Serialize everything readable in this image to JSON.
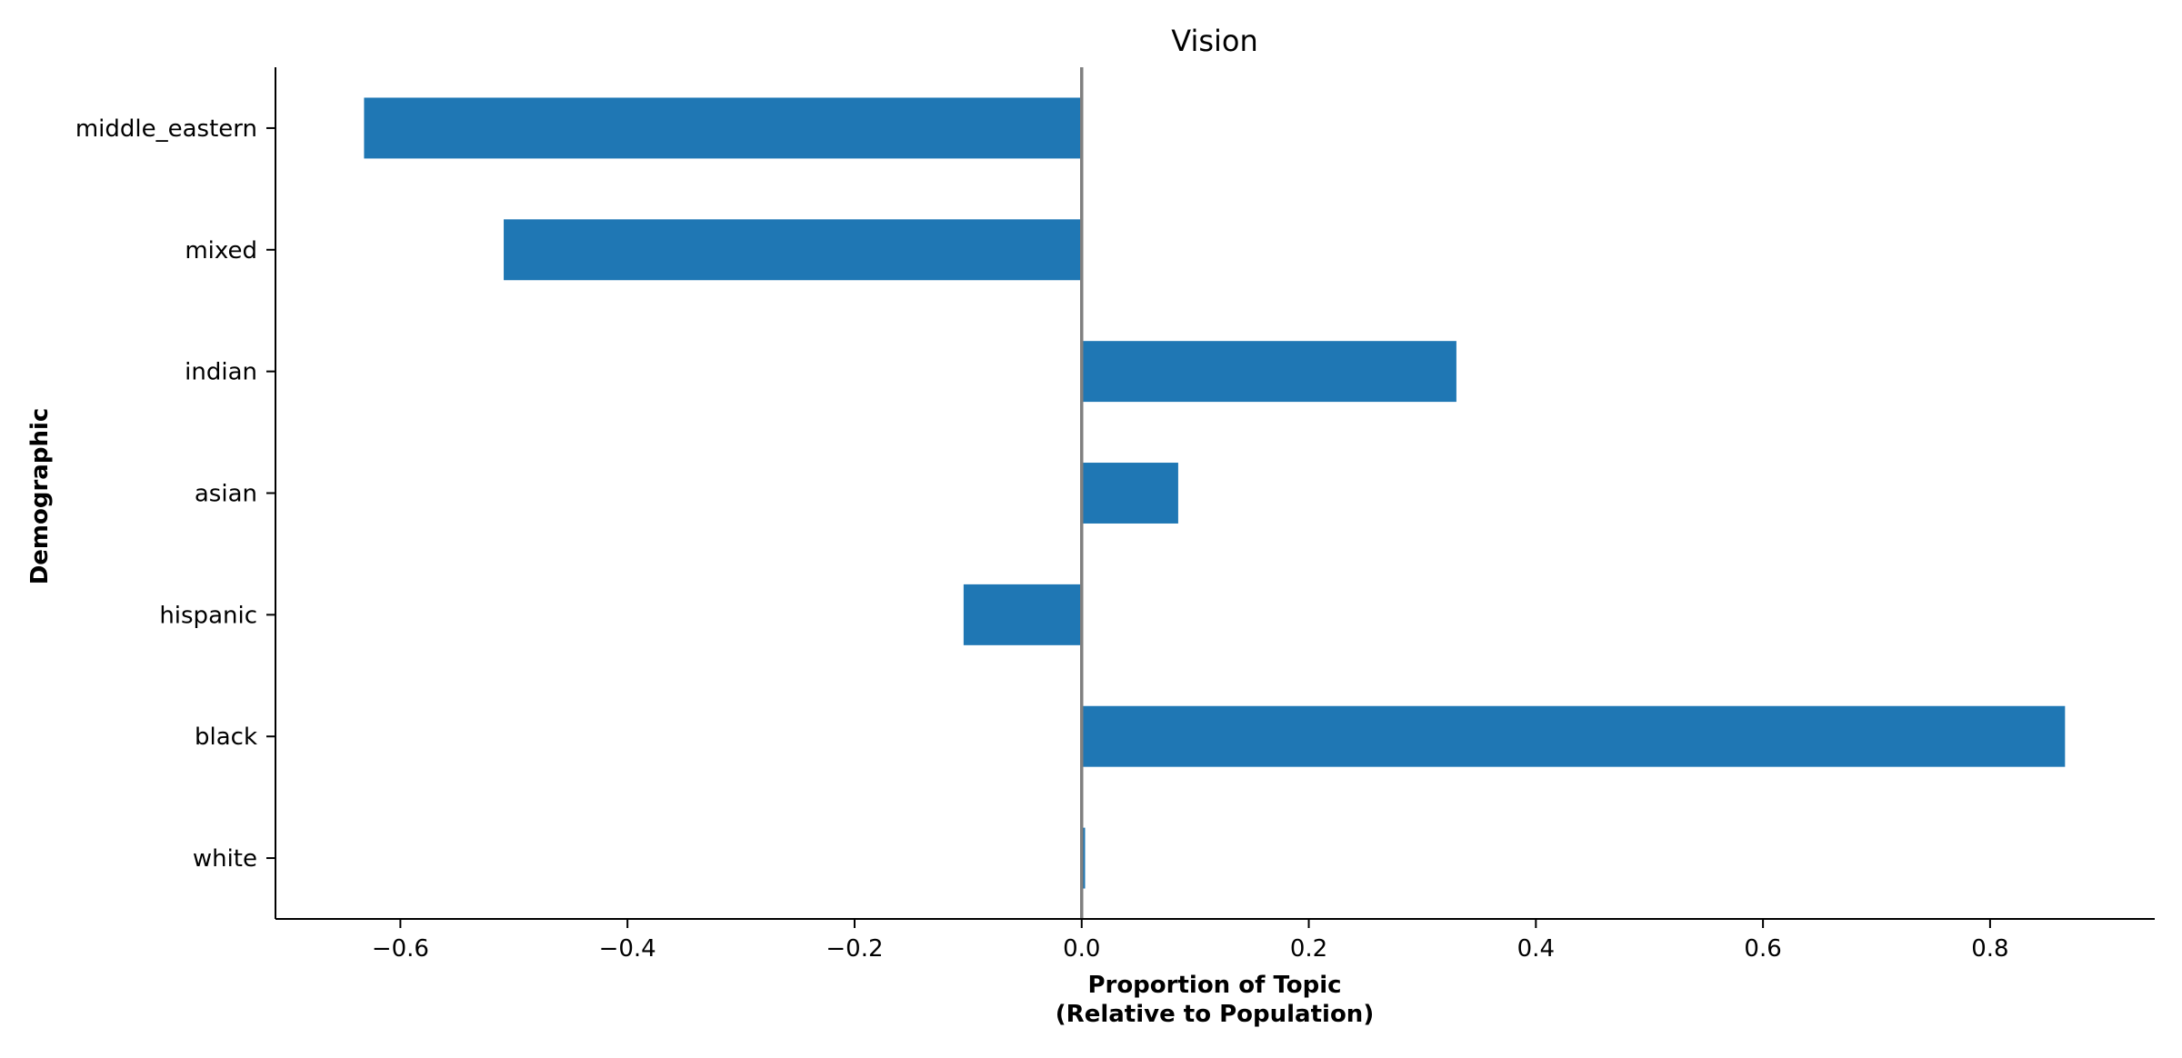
{
  "chart_data": {
    "type": "bar",
    "orientation": "horizontal",
    "title": "Vision",
    "xlabel_line1": "Proportion of Topic",
    "xlabel_line2": "(Relative to Population)",
    "ylabel": "Demographic",
    "categories": [
      "white",
      "black",
      "hispanic",
      "asian",
      "indian",
      "mixed",
      "middle_eastern"
    ],
    "values": [
      0.003,
      0.866,
      -0.104,
      0.085,
      0.33,
      -0.509,
      -0.632
    ],
    "xlim": [
      -0.71,
      0.945
    ],
    "xticks": [
      -0.6,
      -0.4,
      -0.2,
      0.0,
      0.2,
      0.4,
      0.6,
      0.8
    ],
    "xtick_labels": [
      "−0.6",
      "−0.4",
      "−0.2",
      "0.0",
      "0.2",
      "0.4",
      "0.6",
      "0.8"
    ],
    "bar_color": "#1f77b4",
    "zero_line_color": "#808080",
    "grid": false,
    "legend": "none"
  }
}
